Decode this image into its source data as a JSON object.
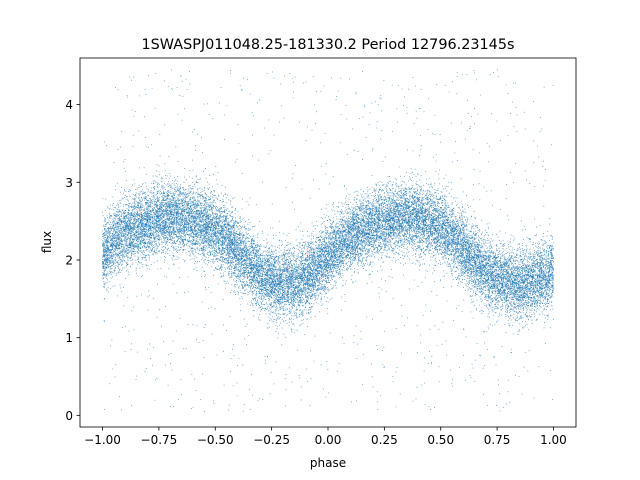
{
  "chart_data": {
    "type": "scatter",
    "title": "1SWASPJ011048.25-181330.2 Period 12796.23145s",
    "xlabel": "phase",
    "ylabel": "flux",
    "xlim": [
      -1.1,
      1.1
    ],
    "ylim": [
      -0.15,
      4.6
    ],
    "x_ticks": [
      -1.0,
      -0.75,
      -0.5,
      -0.25,
      0.0,
      0.25,
      0.5,
      0.75,
      1.0
    ],
    "x_tick_labels": [
      "−1.00",
      "−0.75",
      "−0.50",
      "−0.25",
      "0.00",
      "0.25",
      "0.50",
      "0.75",
      "1.00"
    ],
    "y_ticks": [
      0,
      1,
      2,
      3,
      4
    ],
    "y_tick_labels": [
      "0",
      "1",
      "2",
      "3",
      "4"
    ],
    "grid": false,
    "marker_color": "#1f77b4",
    "series": [
      {
        "x": [
          -1.0,
          -0.95,
          -0.9,
          -0.85,
          -0.8,
          -0.75,
          -0.7,
          -0.65,
          -0.6,
          -0.55,
          -0.5,
          -0.45,
          -0.4,
          -0.35,
          -0.3,
          -0.25,
          -0.2,
          -0.15,
          -0.1,
          -0.05,
          0.0,
          0.05,
          0.1,
          0.15,
          0.2,
          0.25,
          0.3,
          0.35,
          0.4,
          0.45,
          0.5,
          0.55,
          0.6,
          0.65,
          0.7,
          0.75,
          0.8,
          0.85,
          0.9,
          0.95,
          1.0
        ],
        "y": [
          2.05,
          2.25,
          2.35,
          2.42,
          2.48,
          2.52,
          2.55,
          2.53,
          2.5,
          2.45,
          2.38,
          2.25,
          2.1,
          1.95,
          1.8,
          1.72,
          1.68,
          1.7,
          1.78,
          1.9,
          2.05,
          2.2,
          2.3,
          2.38,
          2.45,
          2.5,
          2.53,
          2.55,
          2.52,
          2.48,
          2.42,
          2.3,
          2.15,
          1.98,
          1.85,
          1.75,
          1.72,
          1.7,
          1.72,
          1.78,
          1.85
        ],
        "scatter_sd": 0.22,
        "points_per_phase_unit": 12000,
        "outlier_fraction": 0.04
      }
    ]
  }
}
